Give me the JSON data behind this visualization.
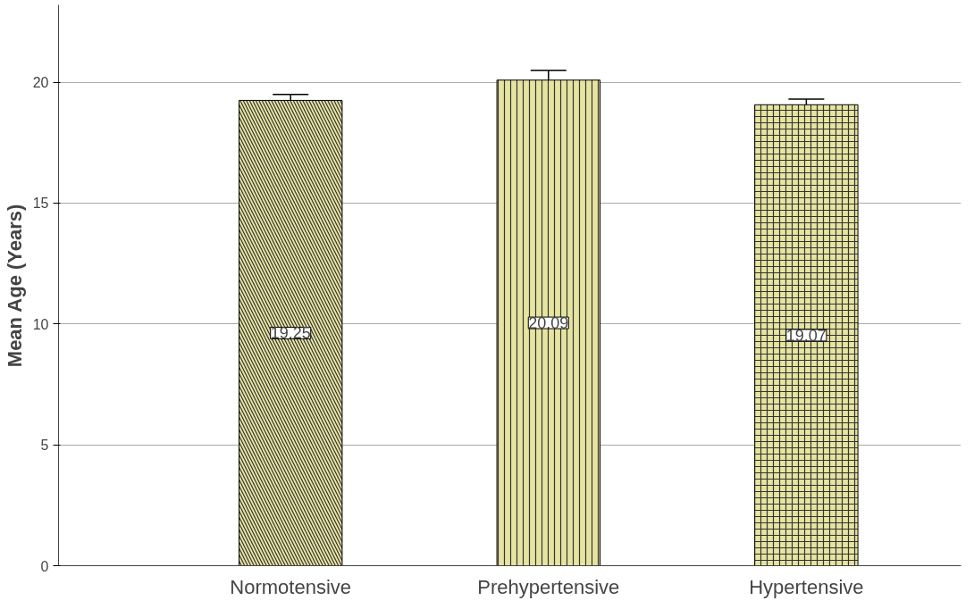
{
  "chart_data": {
    "type": "bar",
    "ylabel": "Mean Age (Years)",
    "categories": [
      "Normotensive",
      "Prehypertensive",
      "Hypertensive"
    ],
    "values": [
      19.25,
      20.09,
      19.07
    ],
    "errors": [
      0.25,
      0.4,
      0.23
    ],
    "color": "#e6e4a0",
    "data_labels": true,
    "ylim": [
      0,
      23.2
    ],
    "yticks": [
      0,
      5,
      10,
      15,
      20
    ],
    "grid": "y"
  }
}
